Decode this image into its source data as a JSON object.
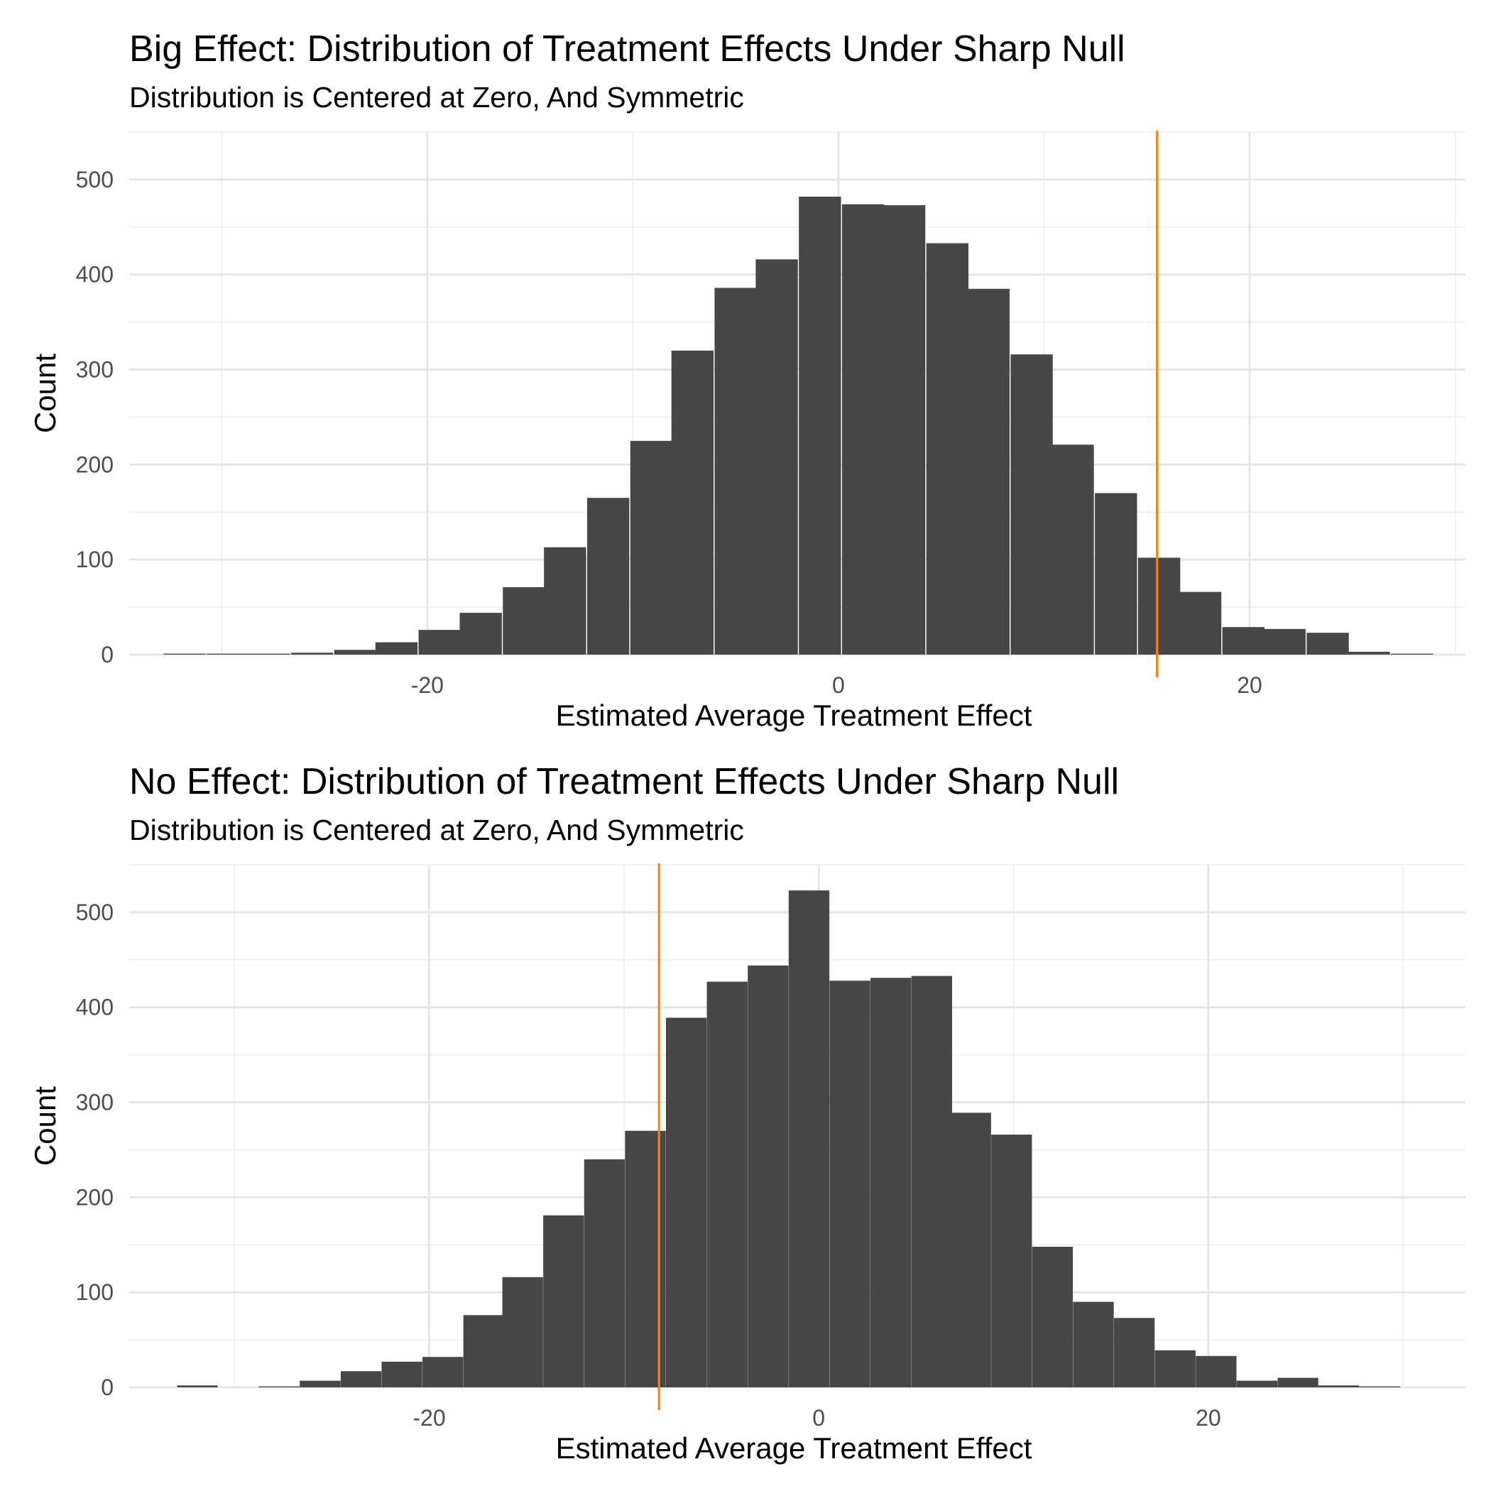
{
  "chart_data": [
    {
      "type": "bar",
      "title": "Big Effect: Distribution of Treatment Effects Under Sharp Null",
      "subtitle": "Distribution is Centered at Zero, And Symmetric",
      "xlabel": "Estimated Average Treatment Effect",
      "ylabel": "Count",
      "xlim": [
        -34.5,
        30.5
      ],
      "ylim": [
        0,
        550
      ],
      "x_breaks": [
        -20,
        0,
        20
      ],
      "x_tick_labels": [
        "-20",
        "0",
        "20"
      ],
      "y_breaks": [
        0,
        100,
        200,
        300,
        400,
        500
      ],
      "y_tick_labels": [
        "0",
        "100",
        "200",
        "300",
        "400",
        "500"
      ],
      "grid": true,
      "bins": {
        "centers": [
          -31.8,
          -29.7,
          -27.7,
          -25.6,
          -23.5,
          -21.5,
          -19.4,
          -17.4,
          -15.3,
          -13.3,
          -11.2,
          -9.1,
          -7.1,
          -5.0,
          -3.0,
          -0.9,
          1.2,
          3.2,
          5.3,
          7.3,
          9.4,
          11.4,
          13.5,
          15.6,
          17.6,
          19.7,
          21.7,
          23.8,
          25.8,
          27.9
        ],
        "width": 2.05,
        "counts": [
          1,
          1,
          1,
          2,
          5,
          13,
          26,
          44,
          71,
          113,
          165,
          225,
          320,
          386,
          416,
          482,
          474,
          473,
          433,
          385,
          316,
          221,
          170,
          102,
          66,
          29,
          27,
          23,
          3,
          1
        ]
      },
      "reference_line": {
        "x": 15.5,
        "color": "#ff7f0e"
      }
    },
    {
      "type": "bar",
      "title": "No Effect: Distribution of Treatment Effects Under Sharp Null",
      "subtitle": "Distribution is Centered at Zero, And Symmetric",
      "xlabel": "Estimated Average Treatment Effect",
      "ylabel": "Count",
      "xlim": [
        -35.4,
        33.2
      ],
      "ylim": [
        0,
        550
      ],
      "x_breaks": [
        -20,
        0,
        20
      ],
      "x_tick_labels": [
        "-20",
        "0",
        "20"
      ],
      "y_breaks": [
        0,
        100,
        200,
        300,
        400,
        500
      ],
      "y_tick_labels": [
        "0",
        "100",
        "200",
        "300",
        "400",
        "500"
      ],
      "grid": true,
      "bins": {
        "centers": [
          -31.9,
          -29.8,
          -27.7,
          -25.6,
          -23.5,
          -21.4,
          -19.3,
          -17.2,
          -15.2,
          -13.1,
          -11.0,
          -8.9,
          -6.8,
          -4.7,
          -2.6,
          -0.5,
          1.6,
          3.7,
          5.8,
          7.8,
          9.9,
          12.0,
          14.1,
          16.2,
          18.3,
          20.4,
          22.5,
          24.6,
          26.7,
          28.8
        ],
        "width": 2.09,
        "counts": [
          2,
          0,
          1,
          7,
          17,
          27,
          32,
          76,
          116,
          181,
          240,
          270,
          389,
          427,
          444,
          523,
          428,
          431,
          433,
          289,
          266,
          148,
          90,
          73,
          39,
          33,
          7,
          10,
          2,
          1
        ]
      },
      "reference_line": {
        "x": -8.2,
        "color": "#ff7f0e"
      }
    }
  ]
}
